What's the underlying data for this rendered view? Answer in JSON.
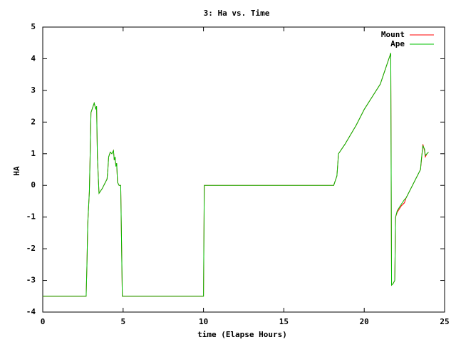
{
  "chart_data": {
    "type": "line",
    "title": "3: Ha vs. Time",
    "x_label": "time (Elapse Hours)",
    "y_label": "HA",
    "x": [
      0,
      2.7,
      2.75,
      2.8,
      2.9,
      2.95,
      3.0,
      3.1,
      3.2,
      3.3,
      3.35,
      3.4,
      3.5,
      3.7,
      3.9,
      4.0,
      4.05,
      4.1,
      4.2,
      4.3,
      4.4,
      4.45,
      4.5,
      4.55,
      4.6,
      4.65,
      4.75,
      4.85,
      4.95,
      10.0,
      10.05,
      18.1,
      18.3,
      18.4,
      18.8,
      19.5,
      20.0,
      20.5,
      21.0,
      21.4,
      21.6,
      21.65,
      21.7,
      21.8,
      21.9,
      21.95,
      22.05,
      22.3,
      22.5,
      22.6,
      23.0,
      23.5,
      23.55,
      23.65,
      23.75,
      23.8,
      23.9,
      24.0
    ],
    "series": [
      {
        "name": "Mount",
        "color": "#ff0000",
        "values": [
          -3.5,
          -3.5,
          -2.5,
          -1.2,
          -0.2,
          1.0,
          2.3,
          2.45,
          2.6,
          2.4,
          2.5,
          0.9,
          -0.25,
          -0.1,
          0.1,
          0.2,
          0.5,
          0.9,
          1.05,
          1.0,
          1.1,
          0.8,
          0.9,
          0.6,
          0.7,
          0.1,
          0.0,
          0.0,
          -3.5,
          -3.5,
          0.0,
          0.0,
          0.3,
          1.0,
          1.3,
          1.9,
          2.4,
          2.8,
          3.2,
          3.8,
          4.1,
          4.18,
          -3.15,
          -3.1,
          -3.0,
          -1.0,
          -0.85,
          -0.65,
          -0.55,
          -0.4,
          0.0,
          0.5,
          0.75,
          1.3,
          1.1,
          0.9,
          1.0,
          1.05
        ]
      },
      {
        "name": "Ape",
        "color": "#00c000",
        "values": [
          -3.5,
          -3.5,
          -2.5,
          -1.2,
          -0.2,
          1.0,
          2.3,
          2.45,
          2.6,
          2.4,
          2.5,
          0.9,
          -0.25,
          -0.1,
          0.1,
          0.2,
          0.5,
          0.9,
          1.05,
          1.0,
          1.1,
          0.8,
          0.9,
          0.6,
          0.7,
          0.1,
          0.0,
          0.0,
          -3.5,
          -3.5,
          0.0,
          0.0,
          0.3,
          1.0,
          1.3,
          1.9,
          2.4,
          2.8,
          3.2,
          3.8,
          4.1,
          4.18,
          -3.15,
          -3.1,
          -3.0,
          -1.0,
          -0.8,
          -0.6,
          -0.45,
          -0.4,
          0.0,
          0.5,
          0.8,
          1.25,
          1.15,
          0.95,
          1.0,
          1.05
        ]
      }
    ],
    "xlim": [
      0,
      25
    ],
    "ylim": [
      -4,
      5
    ],
    "xticks": [
      0,
      5,
      10,
      15,
      20,
      25
    ],
    "yticks": [
      -4,
      -3,
      -2,
      -1,
      0,
      1,
      2,
      3,
      4,
      5
    ],
    "legend": "top-right"
  }
}
